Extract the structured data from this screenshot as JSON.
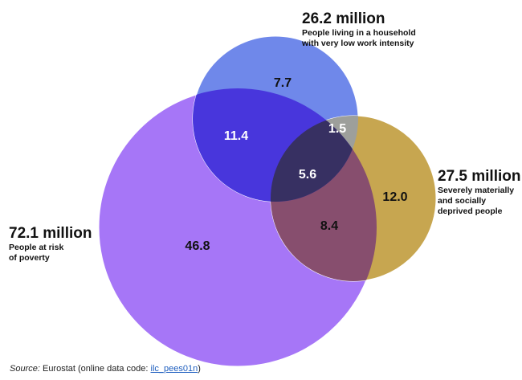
{
  "sets": [
    {
      "id": "poverty",
      "total": "72.1 million",
      "description": "People at risk\nof poverty",
      "color": "#9a5cf5"
    },
    {
      "id": "work",
      "total": "26.2 million",
      "description": "People living in a household\nwith very low work intensity",
      "color": "#5a78ec"
    },
    {
      "id": "deprived",
      "total": "27.5 million",
      "description": "Severely materially\nand socially\ndeprived people",
      "color": "#c6a548"
    }
  ],
  "regions": {
    "poverty_only": "46.8",
    "work_only": "7.7",
    "deprived_only": "12.0",
    "poverty_work": "11.4",
    "work_deprived": "1.5",
    "poverty_deprived": "8.4",
    "all_three": "5.6"
  },
  "source": {
    "prefix": "Source:",
    "text": " Eurostat (online data code: ",
    "code": "ilc_pees01n",
    "suffix": ")"
  }
}
